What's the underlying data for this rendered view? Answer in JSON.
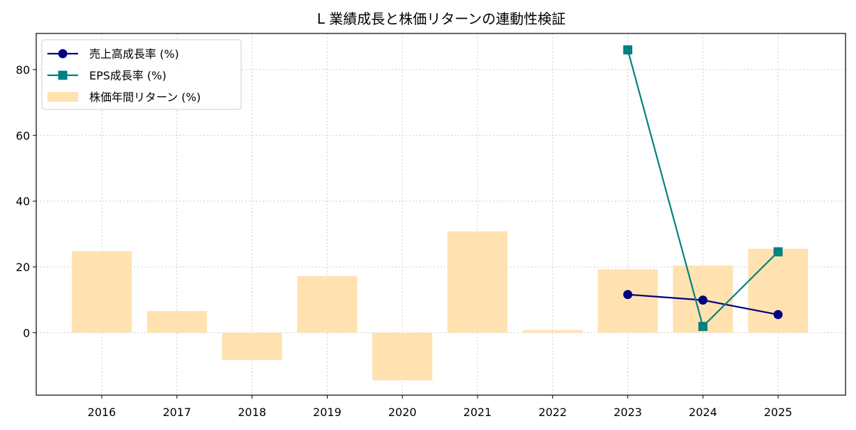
{
  "chart_data": {
    "type": "bar",
    "title": "L 業績成長と株価リターンの連動性検証",
    "xlabel": "",
    "ylabel": "",
    "categories": [
      "2016",
      "2017",
      "2018",
      "2019",
      "2020",
      "2021",
      "2022",
      "2023",
      "2024",
      "2025"
    ],
    "ylim": [
      -19,
      91
    ],
    "yticks": [
      0,
      20,
      40,
      60,
      80
    ],
    "grid": true,
    "legend_position": "top-left",
    "bars": {
      "name": "株価年間リターン (%)",
      "color": "#ffe2b0",
      "values": [
        24.8,
        6.6,
        -8.3,
        17.2,
        -14.5,
        30.8,
        0.8,
        19.3,
        20.4,
        25.5
      ]
    },
    "series": [
      {
        "name": "売上高成長率 (%)",
        "color": "#000080",
        "marker": "circle",
        "values": [
          null,
          null,
          null,
          null,
          null,
          null,
          null,
          11.6,
          9.9,
          5.5
        ]
      },
      {
        "name": "EPS成長率 (%)",
        "color": "#008080",
        "marker": "square",
        "values": [
          null,
          null,
          null,
          null,
          null,
          null,
          null,
          86.0,
          1.9,
          24.6
        ]
      }
    ]
  }
}
